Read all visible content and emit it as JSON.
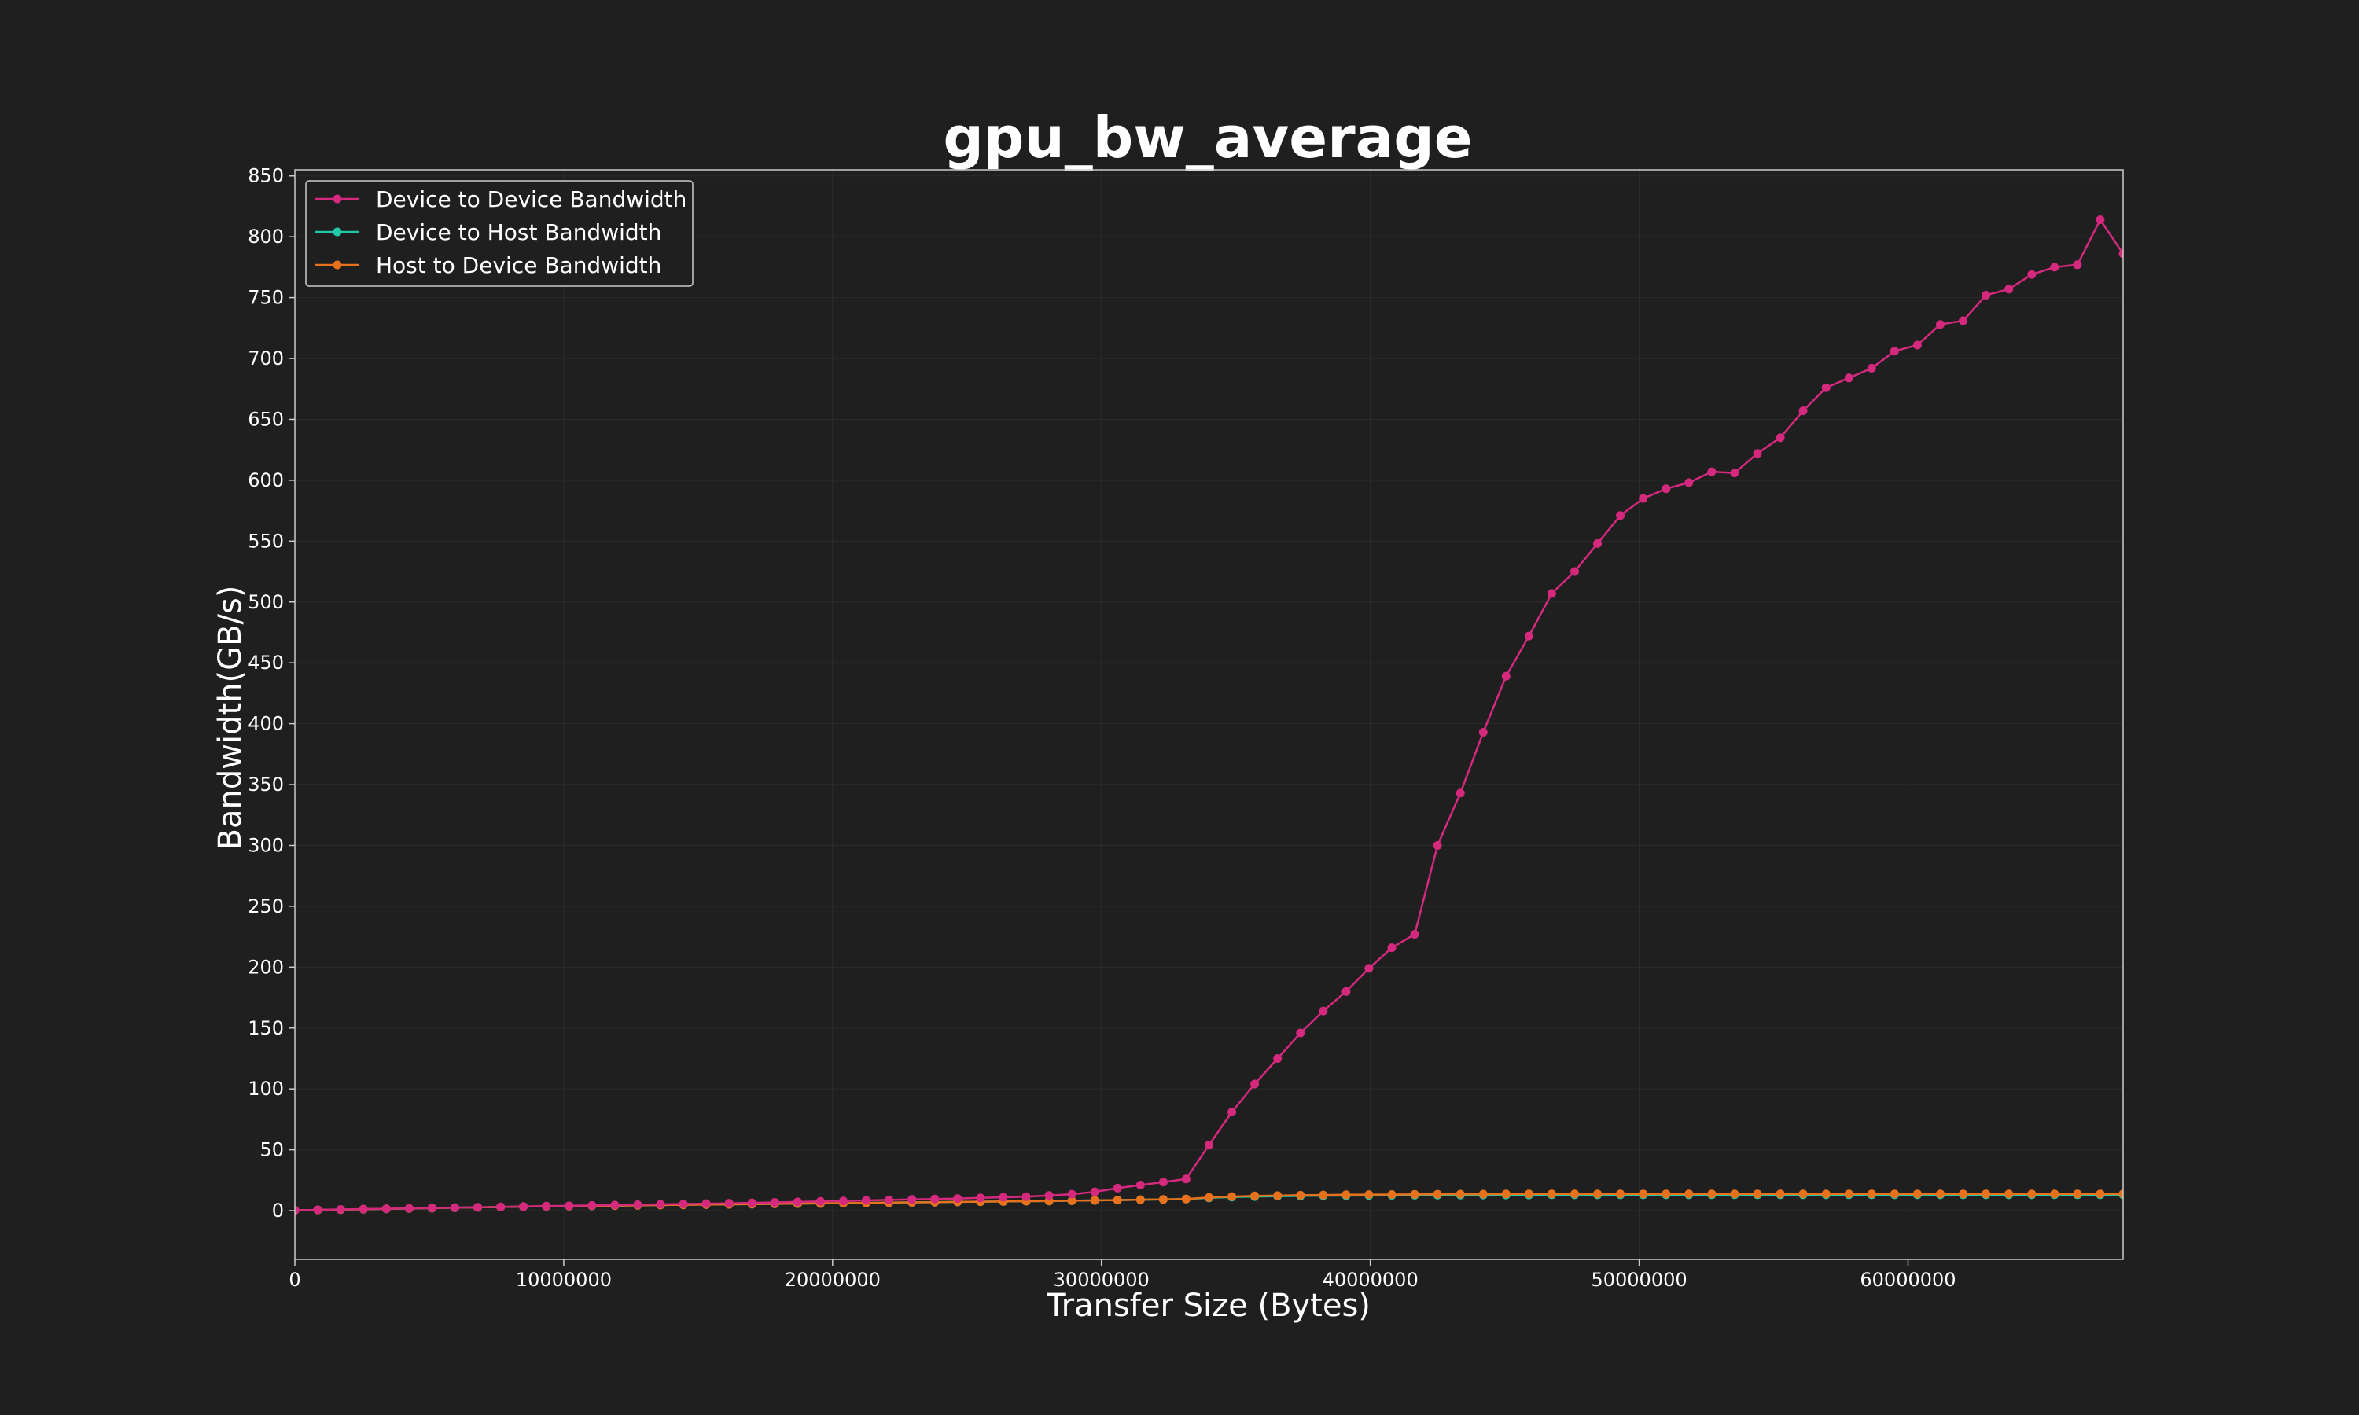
{
  "chart_data": {
    "type": "line",
    "title": "gpu_bw_average",
    "xlabel": "Transfer Size (Bytes)",
    "ylabel": "Bandwidth(GB/s)",
    "xlim": [
      0,
      68000000
    ],
    "ylim": [
      -40,
      855
    ],
    "x_ticks": [
      0,
      10000000,
      20000000,
      30000000,
      40000000,
      50000000,
      60000000
    ],
    "y_ticks": [
      0,
      50,
      100,
      150,
      200,
      250,
      300,
      350,
      400,
      450,
      500,
      550,
      600,
      650,
      700,
      750,
      800,
      850
    ],
    "grid": true,
    "legend_position": "top-left",
    "colors": {
      "background": "#1f1f1f",
      "text": "#ffffff",
      "axis": "#cccccc",
      "grid": "#2c2c2c"
    },
    "x": [
      0,
      850000,
      1700000,
      2550000,
      3400000,
      4250000,
      5100000,
      5950000,
      6800000,
      7650000,
      8500000,
      9350000,
      10200000,
      11050000,
      11900000,
      12750000,
      13600000,
      14450000,
      15300000,
      16150000,
      17000000,
      17850000,
      18700000,
      19550000,
      20400000,
      21250000,
      22100000,
      22950000,
      23800000,
      24650000,
      25500000,
      26350000,
      27200000,
      28050000,
      28900000,
      29750000,
      30600000,
      31450000,
      32300000,
      33150000,
      34000000,
      34850000,
      35700000,
      36550000,
      37400000,
      38250000,
      39100000,
      39950000,
      40800000,
      41650000,
      42500000,
      43350000,
      44200000,
      45050000,
      45900000,
      46750000,
      47600000,
      48450000,
      49300000,
      50150000,
      51000000,
      51850000,
      52700000,
      53550000,
      54400000,
      55250000,
      56100000,
      56950000,
      57800000,
      58650000,
      59500000,
      60350000,
      61200000,
      62050000,
      62900000,
      63750000,
      64600000,
      65450000,
      66300000,
      67150000,
      68000000
    ],
    "series": [
      {
        "name": "Device to Device Bandwidth",
        "color": "#d4297d",
        "values": [
          0.3,
          0.7,
          1.0,
          1.3,
          1.6,
          1.9,
          2.2,
          2.5,
          2.8,
          3.1,
          3.4,
          3.7,
          4.0,
          4.3,
          4.6,
          4.9,
          5.2,
          5.5,
          5.8,
          6.1,
          6.4,
          6.8,
          7.2,
          7.6,
          8.0,
          8.4,
          8.8,
          9.2,
          9.6,
          10.0,
          10.5,
          11.0,
          11.5,
          12.5,
          13.5,
          15.5,
          18.5,
          21,
          23.5,
          26,
          54,
          81,
          104,
          125,
          146,
          164,
          180,
          199,
          216,
          227,
          300,
          343,
          393,
          439,
          472,
          507,
          525,
          548,
          571,
          585,
          593,
          598,
          607,
          606,
          622,
          635,
          657,
          676,
          684,
          692,
          706,
          711,
          728,
          731,
          752,
          757,
          769,
          775,
          777,
          814,
          786
        ]
      },
      {
        "name": "Device to Host Bandwidth",
        "color": "#1fc9a8",
        "values": [
          0.3,
          0.6,
          0.9,
          1.2,
          1.5,
          1.8,
          2.1,
          2.4,
          2.7,
          3.0,
          3.3,
          3.6,
          3.8,
          4.0,
          4.2,
          4.4,
          4.6,
          4.8,
          5.0,
          5.2,
          5.4,
          5.6,
          5.8,
          6.0,
          6.2,
          6.4,
          6.6,
          6.8,
          7.0,
          7.2,
          7.4,
          7.6,
          7.8,
          8.0,
          8.2,
          8.4,
          8.7,
          9.0,
          9.3,
          9.6,
          10.5,
          11.2,
          11.6,
          11.9,
          12.1,
          12.3,
          12.4,
          12.5,
          12.6,
          12.7,
          12.8,
          12.8,
          12.9,
          12.9,
          12.9,
          13.0,
          13.0,
          13.0,
          13.0,
          13.0,
          13.0,
          13.0,
          13.0,
          13.0,
          13.0,
          13.0,
          13.0,
          13.0,
          13.0,
          13.0,
          13.0,
          13.0,
          13.0,
          13.0,
          13.0,
          13.0,
          13.0,
          13.0,
          13.0,
          13.0,
          13.0
        ]
      },
      {
        "name": "Host to Device Bandwidth",
        "color": "#e8711c",
        "values": [
          0.3,
          0.6,
          0.9,
          1.2,
          1.5,
          1.8,
          2.1,
          2.4,
          2.7,
          3.0,
          3.3,
          3.6,
          3.8,
          4.0,
          4.2,
          4.4,
          4.6,
          4.8,
          5.0,
          5.2,
          5.4,
          5.6,
          5.8,
          6.0,
          6.2,
          6.4,
          6.6,
          6.8,
          7.0,
          7.2,
          7.4,
          7.6,
          7.8,
          8.0,
          8.2,
          8.4,
          8.7,
          9.0,
          9.3,
          9.6,
          10.8,
          11.6,
          12.1,
          12.4,
          12.7,
          12.9,
          13.1,
          13.2,
          13.3,
          13.4,
          13.5,
          13.6,
          13.6,
          13.7,
          13.7,
          13.7,
          13.8,
          13.8,
          13.8,
          13.8,
          13.8,
          13.8,
          13.8,
          13.8,
          13.8,
          13.8,
          13.8,
          13.8,
          13.8,
          13.8,
          13.8,
          13.8,
          13.8,
          13.8,
          13.8,
          13.8,
          13.8,
          13.8,
          13.8,
          13.8,
          13.8
        ]
      }
    ]
  }
}
